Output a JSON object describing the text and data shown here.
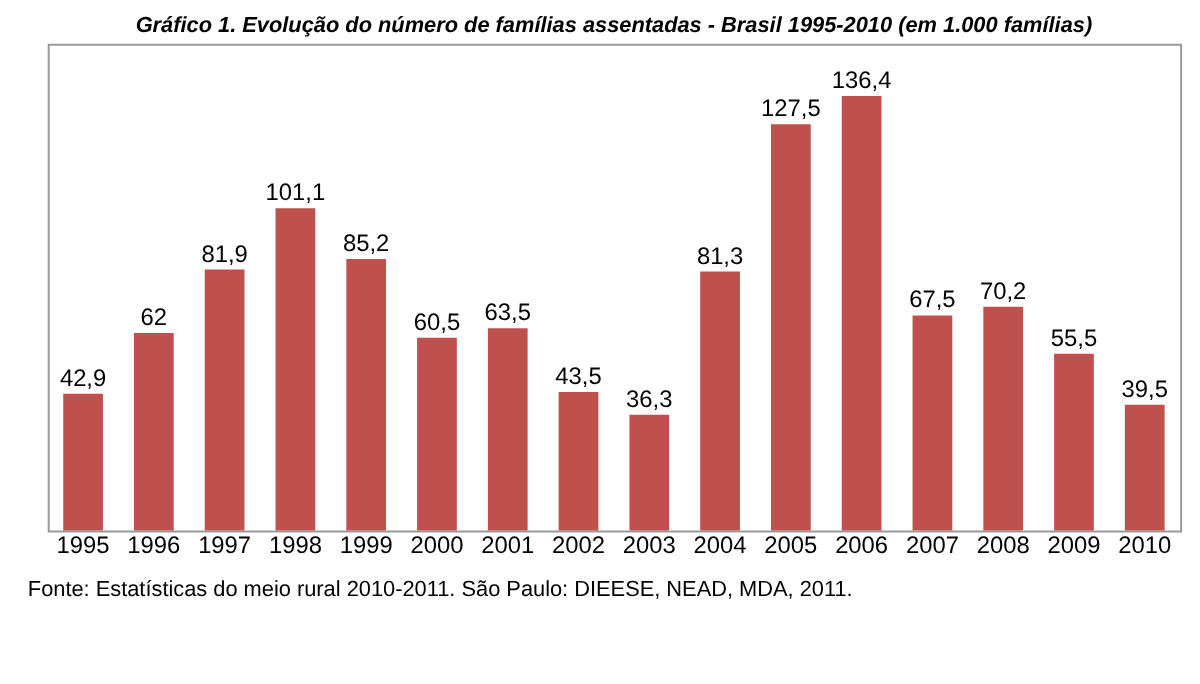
{
  "chart_data": {
    "type": "bar",
    "title": "Gráfico 1. Evolução do número de famílias assentadas - Brasil 1995-2010 (em 1.000 famílias)",
    "categories": [
      "1995",
      "1996",
      "1997",
      "1998",
      "1999",
      "2000",
      "2001",
      "2002",
      "2003",
      "2004",
      "2005",
      "2006",
      "2007",
      "2008",
      "2009",
      "2010"
    ],
    "values": [
      42.9,
      62,
      81.9,
      101.1,
      85.2,
      60.5,
      63.5,
      43.5,
      36.3,
      81.3,
      127.5,
      136.4,
      67.5,
      70.2,
      55.5,
      39.5
    ],
    "value_labels": [
      "42,9",
      "62",
      "81,9",
      "101,1",
      "85,2",
      "60,5",
      "63,5",
      "43,5",
      "36,3",
      "81,3",
      "127,5",
      "136,4",
      "67,5",
      "70,2",
      "55,5",
      "39,5"
    ],
    "color": "#c0504d",
    "annotations": [
      "Fonte: Estatísticas do meio rural 2010-2011. São Paulo: DIEESE, NEAD, MDA, 2011."
    ]
  }
}
